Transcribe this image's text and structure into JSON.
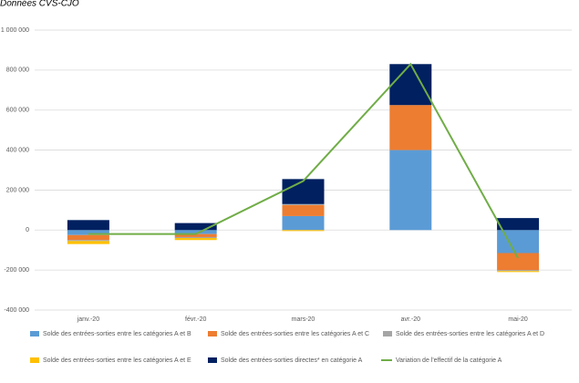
{
  "chart_data": {
    "type": "bar",
    "stacked": true,
    "title": "Données CVS-CJO",
    "categories": [
      "janv.-20",
      "févr.-20",
      "mars-20",
      "avr.-20",
      "mai-20"
    ],
    "series": [
      {
        "name": "Solde des entrées-sorties entre les catégories A et B",
        "color": "#5b9bd5",
        "values": [
          -25000,
          -20000,
          70000,
          400000,
          -115000
        ]
      },
      {
        "name": "Solde des entrées-sorties entre les catégories A et C",
        "color": "#ed7d31",
        "values": [
          -25000,
          -15000,
          55000,
          225000,
          -85000
        ]
      },
      {
        "name": "Solde des entrées-sorties entre les catégories A et D",
        "color": "#a5a5a5",
        "values": [
          -5000,
          -5000,
          5000,
          0,
          -5000
        ]
      },
      {
        "name": "Solde des entrées-sorties entre les catégories A et E",
        "color": "#ffc000",
        "values": [
          -15000,
          -10000,
          -5000,
          0,
          -5000
        ]
      },
      {
        "name": "Solde des entrées-sorties directes* en catégorie A",
        "color": "#002060",
        "values": [
          50000,
          35000,
          125000,
          205000,
          60000
        ]
      },
      {
        "name": "Variation de l'effectif de la catégorie A",
        "color": "#70ad47",
        "type": "line",
        "values": [
          -20000,
          -20000,
          245000,
          830000,
          -140000
        ]
      }
    ],
    "ylim": [
      -400000,
      1000000
    ],
    "yticks": [
      {
        "value": -400000,
        "label": "-400 000"
      },
      {
        "value": -200000,
        "label": "-200 000"
      },
      0,
      {
        "value": 200000,
        "label": "200 000"
      },
      {
        "value": 400000,
        "label": "400 000"
      },
      {
        "value": 600000,
        "label": "600 000"
      },
      {
        "value": 800000,
        "label": "800 000"
      },
      {
        "value": 1000000,
        "label": "1 000 000"
      }
    ],
    "grid": true
  }
}
